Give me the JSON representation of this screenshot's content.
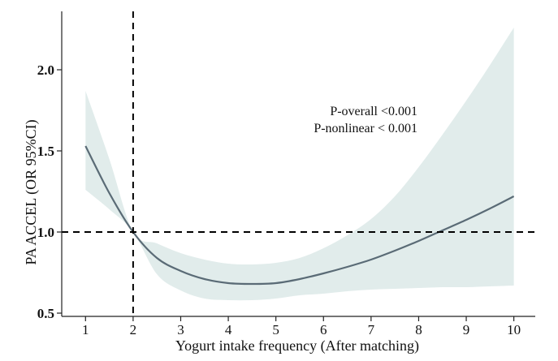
{
  "chart_data": {
    "type": "line",
    "title": "",
    "xlabel": "Yogurt intake frequency (After matching)",
    "ylabel": "PA ACCEL (OR 95%CI)",
    "xlim": [
      0.5,
      10.45
    ],
    "ylim": [
      0.48,
      2.36
    ],
    "xticks": [
      1,
      2,
      3,
      4,
      5,
      6,
      7,
      8,
      9,
      10
    ],
    "yticks": [
      0.5,
      1.0,
      1.5,
      2.0
    ],
    "ytick_labels": [
      "0.5",
      "1.0",
      "1.5",
      "2.0"
    ],
    "grid": false,
    "reference_lines": {
      "y": 1.0,
      "x": 2
    },
    "annotations": [
      "P-overall <0.001",
      "P-nonlinear < 0.001"
    ],
    "series": [
      {
        "x": [
          1,
          1.5,
          2,
          2.5,
          3,
          3.5,
          4,
          4.5,
          5,
          5.5,
          6,
          6.5,
          7,
          7.5,
          8,
          8.5,
          9,
          9.5,
          10
        ],
        "values": [
          1.53,
          1.24,
          1.0,
          0.84,
          0.76,
          0.71,
          0.685,
          0.68,
          0.685,
          0.71,
          0.745,
          0.785,
          0.83,
          0.885,
          0.945,
          1.01,
          1.075,
          1.145,
          1.22
        ],
        "lower": [
          1.26,
          1.14,
          1.0,
          0.74,
          0.64,
          0.59,
          0.58,
          0.58,
          0.59,
          0.61,
          0.62,
          0.635,
          0.645,
          0.65,
          0.655,
          0.66,
          0.66,
          0.665,
          0.67
        ],
        "upper": [
          1.87,
          1.45,
          1.0,
          0.93,
          0.87,
          0.83,
          0.805,
          0.8,
          0.81,
          0.84,
          0.9,
          0.98,
          1.08,
          1.22,
          1.4,
          1.6,
          1.81,
          2.03,
          2.26
        ]
      }
    ],
    "colors": {
      "line": "#5a6b76",
      "band": "#e1eceb",
      "reference": "#000000"
    }
  }
}
